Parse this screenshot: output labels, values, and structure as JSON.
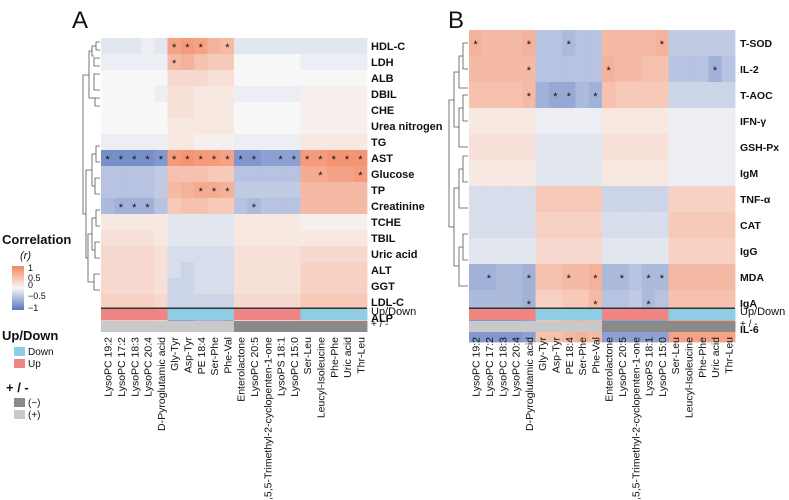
{
  "legend": {
    "correlation_title": "Correlation",
    "correlation_sub": "(r)",
    "ticks": [
      "1",
      "0.5",
      "0",
      "−0.5",
      "−1"
    ],
    "updown_title": "Up/Down",
    "updown_items": [
      "Down",
      "Up"
    ],
    "sign_title": "+ / -",
    "sign_items": [
      "(−)",
      "(+)"
    ]
  },
  "colors": {
    "positive": "#f4865f",
    "negative": "#5876be",
    "neutral": "#f7f7f7",
    "up": "#f08585",
    "down": "#8ecde3",
    "sign_neg": "#8a8a8a",
    "sign_pos": "#c9c9c9"
  },
  "chart_data": [
    {
      "type": "heatmap",
      "panel_label": "A",
      "rows": [
        "HDL-C",
        "LDH",
        "ALB",
        "DBIL",
        "CHE",
        "Urea nitrogen",
        "TG",
        "AST",
        "Glucose",
        "TP",
        "Creatinine",
        "TCHE",
        "TBIL",
        "Uric acid",
        "ALT",
        "GGT",
        "LDL-C",
        "ALP"
      ],
      "columns": [
        "LysoPC 19:2",
        "LysoPC 17:2",
        "LysoPC 18:3",
        "LysoPC 20:4",
        "D-Pyroglutamic acid",
        "Gly-Tyr",
        "Asp-Tyr",
        "PE 18:4",
        "Ser-Phe",
        "Phe-Val",
        "Enterolactone",
        "LysoPC 20:5",
        "3,5,5-Trimethyl-2-cyclopenten-1-one",
        "LysoPS 18:1",
        "LysoPC 15:0",
        "Ser-Leu",
        "Leucyl-Isoleucine",
        "Phe-Phe",
        "Uric acid",
        "Thr-Leu"
      ],
      "values": [
        [
          -0.1,
          -0.1,
          -0.1,
          -0.05,
          -0.1,
          0.55,
          0.6,
          0.55,
          0.45,
          0.4,
          -0.1,
          -0.1,
          -0.1,
          -0.1,
          -0.1,
          -0.1,
          -0.1,
          -0.1,
          -0.1,
          -0.1
        ],
        [
          -0.05,
          -0.05,
          -0.05,
          -0.05,
          -0.05,
          0.4,
          0.45,
          0.35,
          0.3,
          0.3,
          0.0,
          0.0,
          0.0,
          0.0,
          0.0,
          -0.05,
          -0.05,
          -0.05,
          -0.05,
          -0.05
        ],
        [
          0.0,
          0.0,
          0.0,
          0.0,
          0.0,
          0.2,
          0.2,
          0.2,
          0.15,
          0.15,
          0.0,
          0.0,
          0.0,
          0.0,
          0.0,
          0.0,
          0.0,
          0.0,
          0.0,
          0.0
        ],
        [
          0.0,
          0.0,
          0.0,
          0.0,
          -0.05,
          0.15,
          0.15,
          0.1,
          0.1,
          0.1,
          -0.05,
          -0.05,
          -0.05,
          -0.05,
          -0.05,
          0.05,
          0.05,
          0.05,
          0.05,
          0.05
        ],
        [
          0.0,
          0.0,
          0.0,
          0.0,
          0.0,
          0.15,
          0.15,
          0.1,
          0.1,
          0.1,
          0.0,
          0.0,
          0.0,
          0.0,
          0.0,
          0.05,
          0.05,
          0.05,
          0.05,
          0.05
        ],
        [
          0.0,
          0.0,
          0.0,
          0.0,
          0.0,
          0.1,
          0.1,
          0.1,
          0.1,
          0.1,
          0.0,
          0.0,
          0.0,
          0.0,
          0.0,
          0.05,
          0.05,
          0.05,
          0.05,
          0.05
        ],
        [
          -0.05,
          -0.05,
          -0.05,
          -0.05,
          -0.05,
          0.1,
          0.1,
          0.05,
          0.05,
          0.05,
          -0.05,
          -0.05,
          -0.05,
          -0.05,
          -0.05,
          0.1,
          0.1,
          0.1,
          0.1,
          0.1
        ],
        [
          -0.6,
          -0.6,
          -0.6,
          -0.6,
          -0.55,
          0.6,
          0.65,
          0.6,
          0.6,
          0.55,
          -0.55,
          -0.55,
          -0.5,
          -0.5,
          -0.5,
          0.6,
          0.6,
          0.65,
          0.65,
          0.65
        ],
        [
          -0.3,
          -0.3,
          -0.3,
          -0.3,
          -0.25,
          0.35,
          0.35,
          0.35,
          0.3,
          0.3,
          -0.3,
          -0.3,
          -0.3,
          -0.3,
          -0.3,
          0.5,
          0.5,
          0.55,
          0.55,
          0.6
        ],
        [
          -0.3,
          -0.3,
          -0.3,
          -0.3,
          -0.25,
          0.4,
          0.45,
          0.5,
          0.5,
          0.45,
          -0.25,
          -0.25,
          -0.25,
          -0.25,
          -0.25,
          0.4,
          0.4,
          0.4,
          0.4,
          0.4
        ],
        [
          -0.35,
          -0.4,
          -0.4,
          -0.4,
          -0.3,
          0.3,
          0.35,
          0.35,
          0.3,
          0.3,
          -0.3,
          -0.35,
          -0.3,
          -0.3,
          -0.3,
          0.4,
          0.4,
          0.4,
          0.4,
          0.4
        ],
        [
          0.1,
          0.1,
          0.1,
          0.1,
          0.1,
          -0.1,
          -0.1,
          -0.1,
          -0.1,
          -0.1,
          0.1,
          0.1,
          0.1,
          0.1,
          0.1,
          0.05,
          0.05,
          0.05,
          0.05,
          0.05
        ],
        [
          0.15,
          0.15,
          0.15,
          0.15,
          0.1,
          -0.1,
          -0.1,
          -0.1,
          -0.1,
          -0.1,
          0.1,
          0.1,
          0.1,
          0.1,
          0.1,
          0.1,
          0.1,
          0.1,
          0.1,
          0.1
        ],
        [
          0.2,
          0.2,
          0.2,
          0.2,
          0.15,
          -0.15,
          -0.15,
          -0.15,
          -0.15,
          -0.15,
          0.15,
          0.15,
          0.15,
          0.15,
          0.15,
          0.2,
          0.2,
          0.2,
          0.2,
          0.2
        ],
        [
          0.2,
          0.2,
          0.2,
          0.2,
          0.15,
          -0.15,
          -0.2,
          -0.15,
          -0.15,
          -0.15,
          0.15,
          0.15,
          0.15,
          0.15,
          0.15,
          0.25,
          0.25,
          0.25,
          0.25,
          0.25
        ],
        [
          0.2,
          0.2,
          0.2,
          0.2,
          0.15,
          -0.2,
          -0.2,
          -0.15,
          -0.15,
          -0.15,
          0.15,
          0.15,
          0.15,
          0.15,
          0.15,
          0.25,
          0.25,
          0.25,
          0.25,
          0.25
        ],
        [
          0.25,
          0.25,
          0.25,
          0.25,
          0.2,
          -0.2,
          -0.2,
          -0.2,
          -0.2,
          -0.2,
          0.2,
          0.2,
          0.2,
          0.2,
          0.2,
          0.3,
          0.3,
          0.3,
          0.3,
          0.3
        ],
        [
          0.3,
          0.3,
          0.3,
          0.3,
          0.25,
          -0.5,
          -0.5,
          -0.4,
          -0.4,
          -0.45,
          0.25,
          0.25,
          0.25,
          0.25,
          0.25,
          0.3,
          0.3,
          0.3,
          0.3,
          0.3
        ]
      ],
      "significant": [
        [
          0,
          5
        ],
        [
          0,
          6
        ],
        [
          0,
          7
        ],
        [
          0,
          9
        ],
        [
          1,
          5
        ],
        [
          7,
          0
        ],
        [
          7,
          1
        ],
        [
          7,
          2
        ],
        [
          7,
          3
        ],
        [
          7,
          4
        ],
        [
          7,
          5
        ],
        [
          7,
          6
        ],
        [
          7,
          7
        ],
        [
          7,
          8
        ],
        [
          7,
          9
        ],
        [
          7,
          10
        ],
        [
          7,
          11
        ],
        [
          7,
          13
        ],
        [
          7,
          14
        ],
        [
          7,
          15
        ],
        [
          7,
          16
        ],
        [
          7,
          17
        ],
        [
          7,
          18
        ],
        [
          7,
          19
        ],
        [
          8,
          16
        ],
        [
          8,
          19
        ],
        [
          9,
          7
        ],
        [
          9,
          8
        ],
        [
          9,
          9
        ],
        [
          10,
          1
        ],
        [
          10,
          2
        ],
        [
          10,
          3
        ],
        [
          10,
          11
        ],
        [
          17,
          5
        ],
        [
          17,
          6
        ],
        [
          17,
          9
        ]
      ],
      "significance_mark": "*",
      "annotation_updown_label": "Up/Down",
      "annotation_sign_label": "+ / -",
      "column_updown": [
        "Up",
        "Up",
        "Up",
        "Up",
        "Up",
        "Down",
        "Down",
        "Down",
        "Down",
        "Down",
        "Up",
        "Up",
        "Up",
        "Up",
        "Up",
        "Down",
        "Down",
        "Down",
        "Down",
        "Down"
      ],
      "column_sign": [
        "+",
        "+",
        "+",
        "+",
        "+",
        "+",
        "+",
        "+",
        "+",
        "+",
        "-",
        "-",
        "-",
        "-",
        "-",
        "-",
        "-",
        "-",
        "-",
        "-"
      ],
      "color_range": [
        -1,
        1
      ]
    },
    {
      "type": "heatmap",
      "panel_label": "B",
      "rows": [
        "T-SOD",
        "IL-2",
        "T-AOC",
        "IFN-γ",
        "GSH-Px",
        "IgM",
        "TNF-α",
        "CAT",
        "IgG",
        "MDA",
        "IgA",
        "IL-6"
      ],
      "columns": [
        "LysoPC 19:2",
        "LysoPC 17:2",
        "LysoPC 18:3",
        "LysoPC 20:4",
        "D-Pyroglutamic acid",
        "Gly-Tyr",
        "Asp-Tyr",
        "PE 18:4",
        "Ser-Phe",
        "Phe-Val",
        "Enterolactone",
        "LysoPC 20:5",
        "3,5,5-Trimethyl-2-cyclopenten-1-one",
        "LysoPS 18:1",
        "LysoPC 15:0",
        "Ser-Leu",
        "Leucyl-Isoleucine",
        "Phe-Phe",
        "Uric acid",
        "Thr-Leu"
      ],
      "values": [
        [
          0.45,
          0.4,
          0.4,
          0.4,
          0.45,
          -0.3,
          -0.3,
          -0.35,
          -0.3,
          -0.3,
          0.4,
          0.4,
          0.4,
          0.4,
          0.45,
          -0.25,
          -0.25,
          -0.25,
          -0.25,
          -0.25
        ],
        [
          0.4,
          0.4,
          0.4,
          0.4,
          0.4,
          -0.3,
          -0.3,
          -0.3,
          -0.3,
          -0.3,
          0.45,
          0.4,
          0.4,
          0.35,
          0.35,
          -0.3,
          -0.3,
          -0.3,
          -0.4,
          -0.3
        ],
        [
          0.35,
          0.35,
          0.35,
          0.35,
          0.4,
          -0.4,
          -0.45,
          -0.45,
          -0.35,
          -0.4,
          0.35,
          0.3,
          0.3,
          0.3,
          0.3,
          -0.2,
          -0.2,
          -0.2,
          -0.2,
          -0.2
        ],
        [
          0.1,
          0.1,
          0.1,
          0.1,
          0.1,
          -0.05,
          -0.05,
          -0.05,
          -0.05,
          -0.05,
          0.1,
          0.1,
          0.1,
          0.1,
          0.1,
          -0.05,
          -0.05,
          -0.05,
          -0.05,
          -0.05
        ],
        [
          0.15,
          0.15,
          0.15,
          0.15,
          0.15,
          -0.1,
          -0.1,
          -0.1,
          -0.1,
          -0.1,
          0.15,
          0.15,
          0.15,
          0.15,
          0.15,
          -0.05,
          -0.05,
          -0.05,
          -0.05,
          -0.05
        ],
        [
          0.1,
          0.1,
          0.1,
          0.1,
          0.1,
          -0.1,
          -0.1,
          -0.1,
          -0.1,
          -0.1,
          0.1,
          0.1,
          0.1,
          0.1,
          0.1,
          -0.05,
          -0.05,
          -0.05,
          -0.05,
          -0.05
        ],
        [
          -0.15,
          -0.15,
          -0.15,
          -0.15,
          -0.15,
          0.3,
          0.3,
          0.3,
          0.3,
          0.3,
          -0.2,
          -0.2,
          -0.2,
          -0.2,
          -0.2,
          0.25,
          0.25,
          0.25,
          0.25,
          0.25
        ],
        [
          -0.15,
          -0.15,
          -0.15,
          -0.15,
          -0.15,
          0.25,
          0.25,
          0.25,
          0.25,
          0.25,
          -0.15,
          -0.15,
          -0.15,
          -0.15,
          -0.15,
          0.3,
          0.3,
          0.3,
          0.3,
          0.3
        ],
        [
          -0.1,
          -0.1,
          -0.1,
          -0.1,
          -0.1,
          0.2,
          0.2,
          0.2,
          0.2,
          0.2,
          -0.1,
          -0.1,
          -0.1,
          -0.1,
          -0.1,
          0.25,
          0.25,
          0.25,
          0.25,
          0.25
        ],
        [
          -0.4,
          -0.4,
          -0.35,
          -0.35,
          -0.4,
          0.35,
          0.35,
          0.4,
          0.4,
          0.45,
          -0.35,
          -0.35,
          -0.3,
          -0.35,
          -0.35,
          0.4,
          0.4,
          0.4,
          0.4,
          0.4
        ],
        [
          -0.35,
          -0.35,
          -0.35,
          -0.35,
          -0.4,
          0.25,
          0.25,
          0.3,
          0.3,
          0.4,
          -0.3,
          -0.3,
          -0.25,
          -0.35,
          -0.3,
          0.35,
          0.35,
          0.35,
          0.35,
          0.35
        ],
        [
          -0.55,
          -0.55,
          -0.55,
          -0.55,
          -0.5,
          0.35,
          0.35,
          0.4,
          0.45,
          0.4,
          -0.5,
          -0.5,
          -0.5,
          -0.5,
          -0.5,
          0.55,
          0.55,
          0.55,
          0.55,
          0.55
        ]
      ],
      "significant": [
        [
          0,
          0
        ],
        [
          0,
          4
        ],
        [
          0,
          7
        ],
        [
          0,
          14
        ],
        [
          1,
          4
        ],
        [
          1,
          10
        ],
        [
          1,
          18
        ],
        [
          2,
          4
        ],
        [
          2,
          6
        ],
        [
          2,
          7
        ],
        [
          2,
          9
        ],
        [
          9,
          1
        ],
        [
          9,
          4
        ],
        [
          9,
          7
        ],
        [
          9,
          9
        ],
        [
          9,
          11
        ],
        [
          9,
          13
        ],
        [
          9,
          14
        ],
        [
          10,
          4
        ],
        [
          10,
          9
        ],
        [
          10,
          13
        ],
        [
          11,
          0
        ],
        [
          11,
          1
        ],
        [
          11,
          2
        ],
        [
          11,
          3
        ],
        [
          11,
          8
        ],
        [
          11,
          10
        ],
        [
          11,
          11
        ],
        [
          11,
          12
        ],
        [
          11,
          13
        ],
        [
          11,
          14
        ],
        [
          11,
          16
        ],
        [
          11,
          17
        ],
        [
          11,
          18
        ],
        [
          11,
          19
        ]
      ],
      "significance_mark": "*",
      "annotation_updown_label": "Up/Down",
      "annotation_sign_label": "+ / -",
      "column_updown": [
        "Up",
        "Up",
        "Up",
        "Up",
        "Up",
        "Down",
        "Down",
        "Down",
        "Down",
        "Down",
        "Up",
        "Up",
        "Up",
        "Up",
        "Up",
        "Down",
        "Down",
        "Down",
        "Down",
        "Down"
      ],
      "column_sign": [
        "+",
        "+",
        "+",
        "+",
        "+",
        "+",
        "+",
        "+",
        "+",
        "+",
        "-",
        "-",
        "-",
        "-",
        "-",
        "-",
        "-",
        "-",
        "-",
        "-"
      ],
      "color_range": [
        -1,
        1
      ]
    }
  ]
}
